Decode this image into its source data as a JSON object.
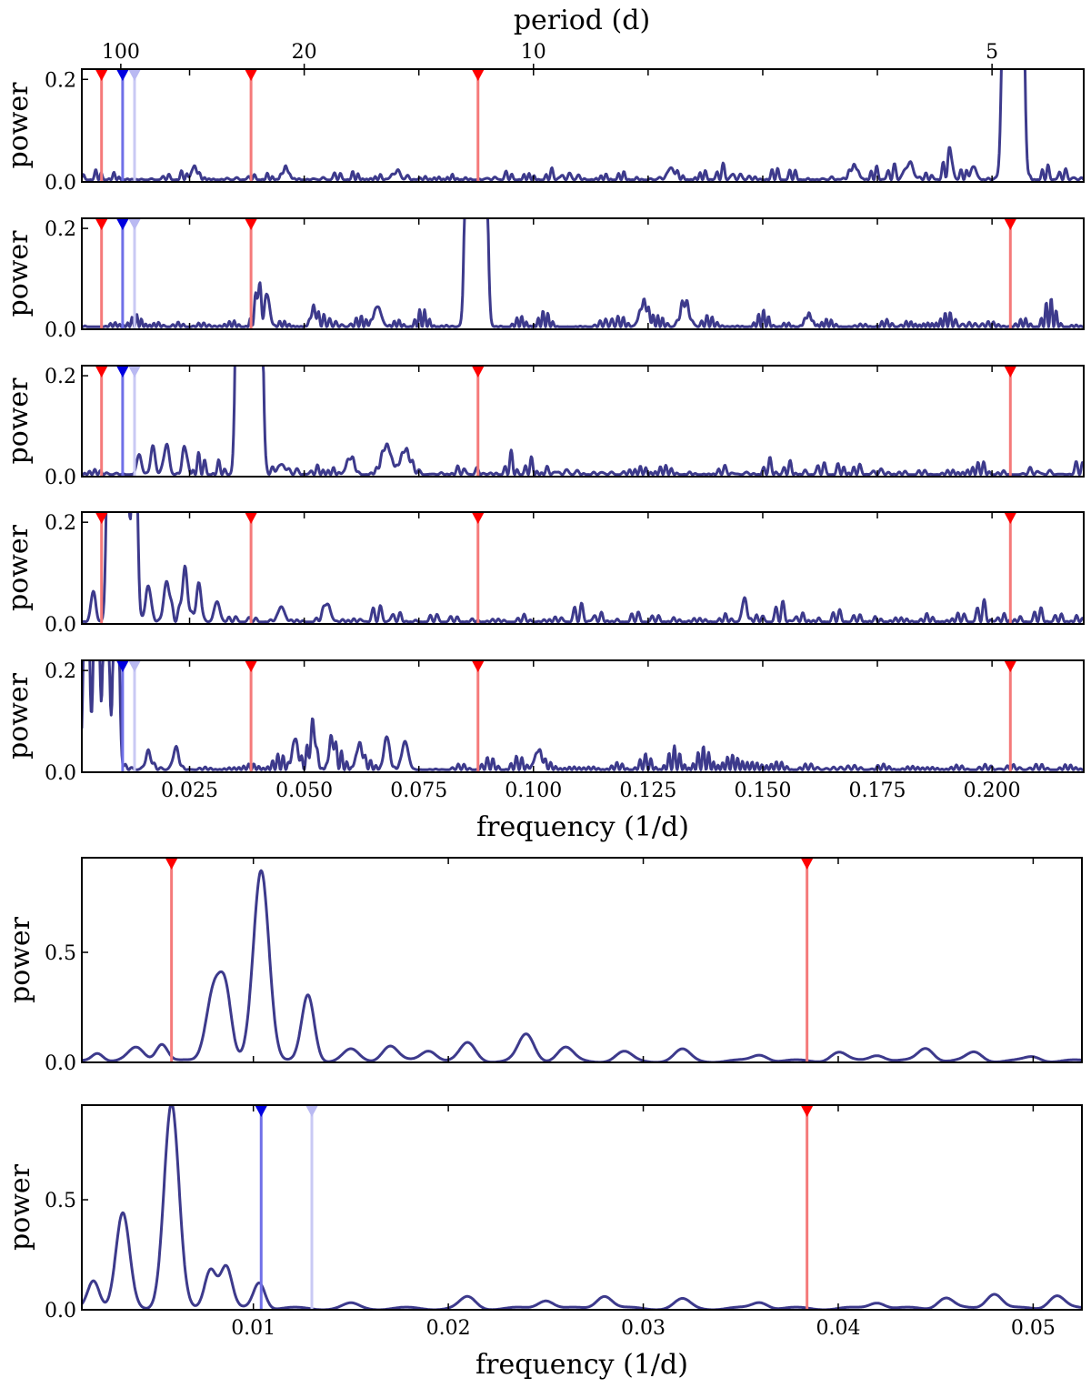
{
  "colors": {
    "curve": "#3d3a8c",
    "marker_red": "#ff0000",
    "line_red": "#f57a7a",
    "marker_blue": "#0000e0",
    "line_blue": "#7070e8",
    "marker_lightblue": "#b9b9f2",
    "line_lightblue": "#c9c9f4"
  },
  "chart_data": [
    {
      "id": "top-group",
      "type": "line",
      "top_axis": {
        "title": "period (d)",
        "ticks": [
          {
            "period": 100,
            "label": "100"
          },
          {
            "period": 20,
            "label": "20"
          },
          {
            "period": 10,
            "label": "10"
          },
          {
            "period": 5,
            "label": "5"
          }
        ]
      },
      "xlabel": "frequency (1/d)",
      "xlim": [
        0.0015,
        0.22
      ],
      "xticks": [
        0.025,
        0.05,
        0.075,
        0.1,
        0.125,
        0.15,
        0.175,
        0.2
      ],
      "xtick_labels": [
        "0.025",
        "0.050",
        "0.075",
        "0.100",
        "0.125",
        "0.150",
        "0.175",
        "0.200"
      ],
      "panels": [
        {
          "ylabel": "power",
          "ylim": [
            0,
            0.22
          ],
          "yticks": [
            0.0,
            0.2
          ],
          "ytick_labels": [
            "0.0",
            "0.2"
          ],
          "markers": [
            {
              "x": 0.0058,
              "color": "red"
            },
            {
              "x": 0.0104,
              "color": "blue"
            },
            {
              "x": 0.013,
              "color": "lightblue"
            },
            {
              "x": 0.0384,
              "color": "red"
            },
            {
              "x": 0.0879,
              "color": "red"
            }
          ],
          "noise": {
            "base": 0.01,
            "amp": 0.014,
            "seed": 11
          },
          "bumps": [
            [
              0.026,
              0.025,
              0.0006
            ],
            [
              0.046,
              0.02,
              0.0007
            ],
            [
              0.07,
              0.012,
              0.0008
            ],
            [
              0.13,
              0.022,
              0.0007
            ],
            [
              0.17,
              0.025,
              0.0008
            ],
            [
              0.182,
              0.03,
              0.0008
            ],
            [
              0.191,
              0.04,
              0.0005
            ],
            [
              0.196,
              0.026,
              0.0006
            ]
          ],
          "peaks": [
            [
              0.2028,
              0.6,
              0.00055
            ],
            [
              0.2046,
              0.6,
              0.00055
            ],
            [
              0.2064,
              0.6,
              0.00055
            ]
          ]
        },
        {
          "ylabel": "power",
          "ylim": [
            0,
            0.22
          ],
          "yticks": [
            0.0,
            0.2
          ],
          "ytick_labels": [
            "0.0",
            "0.2"
          ],
          "markers": [
            {
              "x": 0.0058,
              "color": "red"
            },
            {
              "x": 0.0104,
              "color": "blue"
            },
            {
              "x": 0.013,
              "color": "lightblue"
            },
            {
              "x": 0.0384,
              "color": "red"
            },
            {
              "x": 0.204,
              "color": "red"
            }
          ],
          "noise": {
            "base": 0.012,
            "amp": 0.016,
            "seed": 23
          },
          "bumps": [
            [
              0.04,
              0.06,
              0.0005
            ],
            [
              0.042,
              0.06,
              0.0005
            ],
            [
              0.052,
              0.028,
              0.0006
            ],
            [
              0.066,
              0.04,
              0.0008
            ],
            [
              0.124,
              0.04,
              0.0009
            ],
            [
              0.133,
              0.04,
              0.0009
            ],
            [
              0.16,
              0.02,
              0.0007
            ]
          ],
          "peaks": [
            [
              0.0857,
              0.6,
              0.00055
            ],
            [
              0.0875,
              0.6,
              0.00055
            ],
            [
              0.0893,
              0.6,
              0.00055
            ]
          ]
        },
        {
          "ylabel": "power",
          "ylim": [
            0,
            0.22
          ],
          "yticks": [
            0.0,
            0.2
          ],
          "ytick_labels": [
            "0.0",
            "0.2"
          ],
          "markers": [
            {
              "x": 0.0058,
              "color": "red"
            },
            {
              "x": 0.0104,
              "color": "blue"
            },
            {
              "x": 0.013,
              "color": "lightblue"
            },
            {
              "x": 0.0879,
              "color": "red"
            },
            {
              "x": 0.204,
              "color": "red"
            }
          ],
          "noise": {
            "base": 0.01,
            "amp": 0.016,
            "seed": 37
          },
          "bumps": [
            [
              0.014,
              0.04,
              0.0005
            ],
            [
              0.017,
              0.05,
              0.0005
            ],
            [
              0.02,
              0.06,
              0.0005
            ],
            [
              0.024,
              0.05,
              0.0005
            ],
            [
              0.068,
              0.055,
              0.001
            ],
            [
              0.072,
              0.045,
              0.001
            ],
            [
              0.06,
              0.03,
              0.0008
            ],
            [
              0.045,
              0.02,
              0.0008
            ]
          ],
          "peaks": [
            [
              0.0356,
              0.6,
              0.0005
            ],
            [
              0.0372,
              0.6,
              0.0005
            ],
            [
              0.0388,
              0.6,
              0.0005
            ],
            [
              0.0404,
              0.6,
              0.0005
            ]
          ]
        },
        {
          "ylabel": "power",
          "ylim": [
            0,
            0.22
          ],
          "yticks": [
            0.0,
            0.2
          ],
          "ytick_labels": [
            "0.0",
            "0.2"
          ],
          "markers": [
            {
              "x": 0.0058,
              "color": "red"
            },
            {
              "x": 0.0384,
              "color": "red"
            },
            {
              "x": 0.0879,
              "color": "red"
            },
            {
              "x": 0.204,
              "color": "red"
            }
          ],
          "noise": {
            "base": 0.01,
            "amp": 0.014,
            "seed": 53
          },
          "bumps": [
            [
              0.004,
              0.06,
              0.0005
            ],
            [
              0.016,
              0.07,
              0.0006
            ],
            [
              0.02,
              0.08,
              0.0006
            ],
            [
              0.024,
              0.11,
              0.0005
            ],
            [
              0.027,
              0.06,
              0.0006
            ],
            [
              0.031,
              0.04,
              0.0006
            ],
            [
              0.045,
              0.03,
              0.0007
            ],
            [
              0.055,
              0.035,
              0.0007
            ],
            [
              0.146,
              0.045,
              0.0005
            ]
          ],
          "peaks": [
            [
              0.0075,
              0.6,
              0.0005
            ],
            [
              0.0093,
              0.6,
              0.0005
            ],
            [
              0.0111,
              0.6,
              0.0005
            ],
            [
              0.013,
              0.6,
              0.0005
            ]
          ]
        },
        {
          "ylabel": "power",
          "ylim": [
            0,
            0.22
          ],
          "yticks": [
            0.0,
            0.2
          ],
          "ytick_labels": [
            "0.0",
            "0.2"
          ],
          "markers": [
            {
              "x": 0.0104,
              "color": "blue"
            },
            {
              "x": 0.013,
              "color": "lightblue"
            },
            {
              "x": 0.0384,
              "color": "red"
            },
            {
              "x": 0.0879,
              "color": "red"
            },
            {
              "x": 0.204,
              "color": "red"
            }
          ],
          "noise": {
            "base": 0.012,
            "amp": 0.016,
            "seed": 71
          },
          "bumps": [
            [
              0.016,
              0.03,
              0.0006
            ],
            [
              0.022,
              0.04,
              0.0006
            ],
            [
              0.048,
              0.06,
              0.0006
            ],
            [
              0.052,
              0.065,
              0.0006
            ],
            [
              0.056,
              0.05,
              0.0006
            ],
            [
              0.062,
              0.045,
              0.0007
            ],
            [
              0.068,
              0.065,
              0.0006
            ],
            [
              0.072,
              0.055,
              0.0007
            ],
            [
              0.101,
              0.035,
              0.0008
            ]
          ],
          "peaks": [
            [
              0.0025,
              0.6,
              0.0005
            ],
            [
              0.0047,
              0.6,
              0.0005
            ],
            [
              0.0068,
              0.6,
              0.0005
            ],
            [
              0.009,
              0.6,
              0.0005
            ]
          ]
        }
      ]
    },
    {
      "id": "bottom-group",
      "type": "line",
      "xlabel": "frequency (1/d)",
      "xlim": [
        0.0012,
        0.0525
      ],
      "xticks": [
        0.01,
        0.02,
        0.03,
        0.04,
        0.05
      ],
      "xtick_labels": [
        "0.01",
        "0.02",
        "0.03",
        "0.04",
        "0.05"
      ],
      "panels": [
        {
          "ylabel": "power",
          "ylim": [
            0,
            0.93
          ],
          "yticks": [
            0.0,
            0.5
          ],
          "ytick_labels": [
            "0.0",
            "0.5"
          ],
          "markers": [
            {
              "x": 0.0058,
              "color": "red"
            },
            {
              "x": 0.0384,
              "color": "red"
            }
          ],
          "peaks": [
            [
              0.002,
              0.04,
              0.0003
            ],
            [
              0.004,
              0.06,
              0.0004
            ],
            [
              0.0053,
              0.08,
              0.0003
            ],
            [
              0.008,
              0.34,
              0.0004
            ],
            [
              0.0086,
              0.25,
              0.0003
            ],
            [
              0.0104,
              0.87,
              0.0004
            ],
            [
              0.0128,
              0.3,
              0.00032
            ],
            [
              0.015,
              0.05,
              0.0004
            ],
            [
              0.017,
              0.07,
              0.0004
            ],
            [
              0.019,
              0.05,
              0.0004
            ],
            [
              0.021,
              0.08,
              0.0004
            ],
            [
              0.024,
              0.12,
              0.0004
            ],
            [
              0.026,
              0.06,
              0.0004
            ],
            [
              0.029,
              0.04,
              0.0004
            ],
            [
              0.032,
              0.05,
              0.0004
            ],
            [
              0.036,
              0.03,
              0.0004
            ],
            [
              0.04,
              0.04,
              0.0004
            ],
            [
              0.042,
              0.03,
              0.0004
            ],
            [
              0.0445,
              0.06,
              0.0004
            ],
            [
              0.047,
              0.04,
              0.0004
            ],
            [
              0.05,
              0.02,
              0.0004
            ]
          ]
        },
        {
          "ylabel": "power",
          "ylim": [
            0,
            0.93
          ],
          "yticks": [
            0.0,
            0.5
          ],
          "ytick_labels": [
            "0.0",
            "0.5"
          ],
          "markers": [
            {
              "x": 0.0104,
              "color": "blue"
            },
            {
              "x": 0.013,
              "color": "lightblue"
            },
            {
              "x": 0.0384,
              "color": "red"
            }
          ],
          "peaks": [
            [
              0.0018,
              0.13,
              0.0003
            ],
            [
              0.0033,
              0.43,
              0.00035
            ],
            [
              0.0058,
              0.93,
              0.00038
            ],
            [
              0.0078,
              0.18,
              0.0003
            ],
            [
              0.0086,
              0.19,
              0.0003
            ],
            [
              0.0103,
              0.12,
              0.0003
            ],
            [
              0.015,
              0.02,
              0.0004
            ],
            [
              0.021,
              0.05,
              0.0004
            ],
            [
              0.025,
              0.04,
              0.0004
            ],
            [
              0.028,
              0.06,
              0.0004
            ],
            [
              0.032,
              0.04,
              0.0004
            ],
            [
              0.036,
              0.03,
              0.0004
            ],
            [
              0.042,
              0.03,
              0.0004
            ],
            [
              0.0455,
              0.05,
              0.0004
            ],
            [
              0.048,
              0.07,
              0.0004
            ],
            [
              0.0512,
              0.06,
              0.0004
            ]
          ]
        }
      ]
    }
  ]
}
